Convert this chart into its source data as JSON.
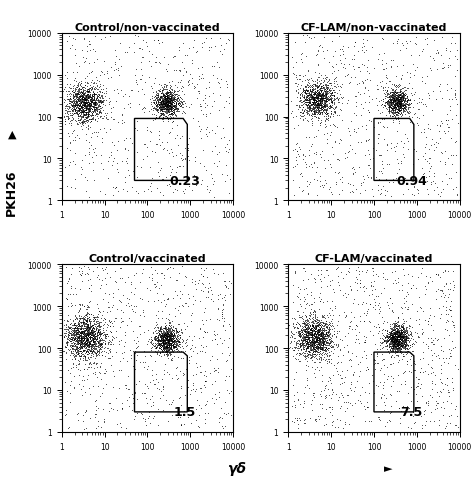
{
  "panels": [
    {
      "title": "Control/non-vaccinated",
      "value": "0.23",
      "row": 0,
      "col": 0,
      "c1": [
        3.5,
        200
      ],
      "c1_sx": 0.5,
      "c1_sy": 0.55,
      "c1_n": 1200,
      "c2": [
        280,
        210
      ],
      "c2_sx": 0.35,
      "c2_sy": 0.38,
      "c2_n": 900,
      "noise_n": 600,
      "gate": [
        [
          50,
          80
        ],
        [
          50,
          3
        ],
        [
          850,
          3
        ],
        [
          850,
          65
        ],
        [
          680,
          90
        ],
        [
          50,
          90
        ]
      ]
    },
    {
      "title": "CF-LAM/non-vaccinated",
      "value": "0.94",
      "row": 0,
      "col": 1,
      "c1": [
        5,
        250
      ],
      "c1_sx": 0.5,
      "c1_sy": 0.5,
      "c1_n": 1100,
      "c2": [
        350,
        220
      ],
      "c2_sx": 0.32,
      "c2_sy": 0.35,
      "c2_n": 800,
      "noise_n": 700,
      "gate": [
        [
          100,
          80
        ],
        [
          100,
          3
        ],
        [
          850,
          3
        ],
        [
          850,
          65
        ],
        [
          680,
          90
        ],
        [
          100,
          90
        ]
      ]
    },
    {
      "title": "Control/vaccinated",
      "value": "1.5",
      "row": 1,
      "col": 0,
      "c1": [
        3.5,
        180
      ],
      "c1_sx": 0.55,
      "c1_sy": 0.6,
      "c1_n": 1400,
      "c2": [
        280,
        160
      ],
      "c2_sx": 0.35,
      "c2_sy": 0.38,
      "c2_n": 900,
      "noise_n": 800,
      "gate": [
        [
          50,
          65
        ],
        [
          50,
          3
        ],
        [
          850,
          3
        ],
        [
          850,
          65
        ],
        [
          680,
          80
        ],
        [
          50,
          80
        ]
      ]
    },
    {
      "title": "CF-LAM/vaccinated",
      "value": "7.5",
      "row": 1,
      "col": 1,
      "c1": [
        4,
        180
      ],
      "c1_sx": 0.5,
      "c1_sy": 0.55,
      "c1_n": 1300,
      "c2": [
        350,
        170
      ],
      "c2_sx": 0.32,
      "c2_sy": 0.38,
      "c2_n": 1000,
      "noise_n": 900,
      "gate": [
        [
          100,
          65
        ],
        [
          100,
          3
        ],
        [
          850,
          3
        ],
        [
          850,
          65
        ],
        [
          680,
          80
        ],
        [
          100,
          80
        ]
      ]
    }
  ],
  "ylabel": "PKH26",
  "xlabel": "γδ",
  "xlim": [
    1,
    10000
  ],
  "ylim": [
    1,
    10000
  ],
  "bg": "#ffffff",
  "dot_color": "#000000",
  "dot_size": 0.5,
  "dot_alpha": 0.55
}
